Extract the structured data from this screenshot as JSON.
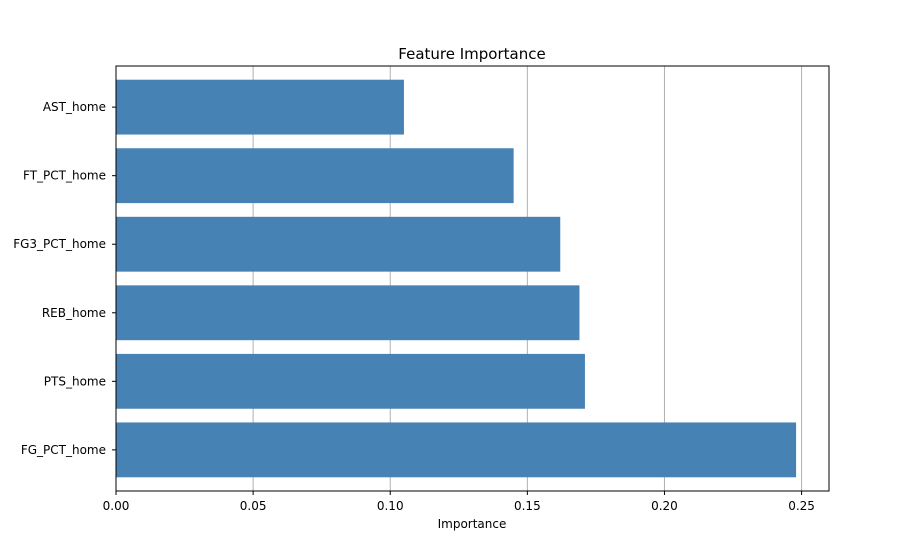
{
  "chart_data": {
    "type": "bar",
    "orientation": "horizontal",
    "title": "Feature Importance",
    "xlabel": "Importance",
    "ylabel": "",
    "categories": [
      "FG_PCT_home",
      "PTS_home",
      "REB_home",
      "FG3_PCT_home",
      "FT_PCT_home",
      "AST_home"
    ],
    "values": [
      0.248,
      0.171,
      0.169,
      0.162,
      0.145,
      0.105
    ],
    "xlim": [
      0,
      0.26
    ],
    "xticks": [
      "0.00",
      "0.05",
      "0.10",
      "0.15",
      "0.20",
      "0.25"
    ],
    "grid": "x",
    "bar_color": "#4682b4"
  }
}
